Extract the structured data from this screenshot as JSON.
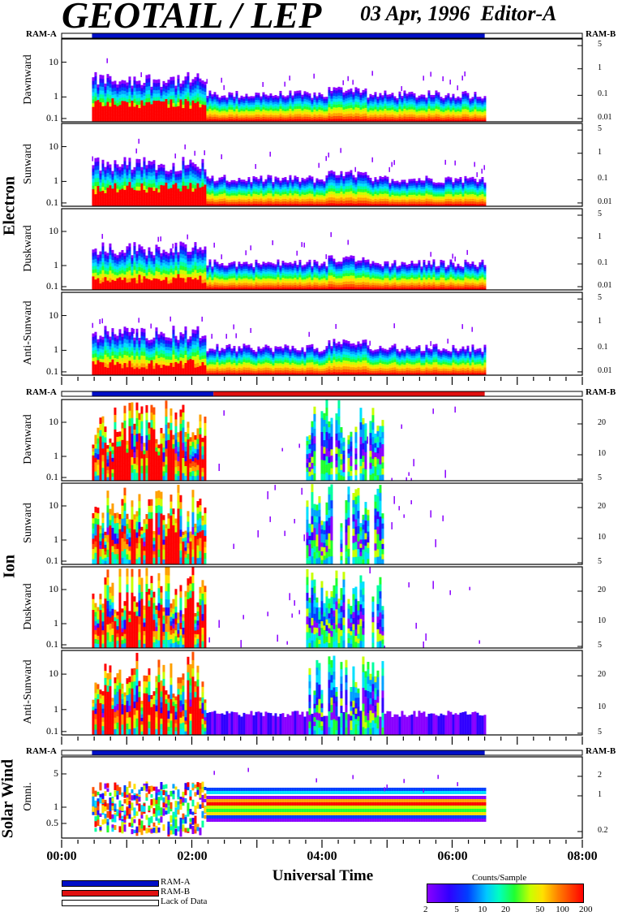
{
  "header": {
    "title": "GEOTAIL / LEP",
    "date": "03 Apr, 1996",
    "editor": "Editor-A"
  },
  "bars": {
    "ram_a": "RAM-A",
    "ram_b": "RAM-B"
  },
  "groups": {
    "electron": "Electron",
    "ion": "Ion",
    "solar_wind": "Solar Wind"
  },
  "panels": [
    {
      "id": "e1",
      "label": "Dawnward",
      "group": "electron"
    },
    {
      "id": "e2",
      "label": "Sunward",
      "group": "electron"
    },
    {
      "id": "e3",
      "label": "Duskward",
      "group": "electron"
    },
    {
      "id": "e4",
      "label": "Anti-Sunward",
      "group": "electron"
    },
    {
      "id": "i1",
      "label": "Dawnward",
      "group": "ion"
    },
    {
      "id": "i2",
      "label": "Sunward",
      "group": "ion"
    },
    {
      "id": "i3",
      "label": "Duskward",
      "group": "ion"
    },
    {
      "id": "i4",
      "label": "Anti-Sunward",
      "group": "ion"
    },
    {
      "id": "s1",
      "label": "Omni.",
      "group": "solar_wind"
    }
  ],
  "axes": {
    "left_ticks": [
      "10",
      "1",
      "0.1"
    ],
    "sw_left_ticks": [
      "5",
      "1",
      "0.5"
    ],
    "electron_right_ticks": [
      "5",
      "1",
      "0.1",
      "0.01"
    ],
    "ion_right_ticks": [
      "20",
      "10",
      "5"
    ],
    "sw_right_ticks": [
      "2",
      "1",
      "0.2"
    ],
    "x_ticks": [
      "00:00",
      "02:00",
      "04:00",
      "06:00",
      "08:00"
    ],
    "x_label": "Universal Time"
  },
  "chart_data": {
    "type": "heatmap",
    "title": "GEOTAIL / LEP",
    "xlabel": "Universal Time",
    "x_range": [
      "00:00",
      "08:00"
    ],
    "data_coverage": [
      "00:28",
      "06:30"
    ],
    "colorbar": {
      "title": "Counts/Sample",
      "ticks": [
        "2",
        "5",
        "10",
        "20",
        "50",
        "100",
        "200"
      ]
    },
    "mode_bars": [
      {
        "section": "electron",
        "mode": "RAM-A",
        "start": "00:28",
        "end": "06:30"
      },
      {
        "section": "ion",
        "mode": "RAM-A",
        "start": "00:28",
        "end": "02:20"
      },
      {
        "section": "ion",
        "mode": "RAM-B",
        "start": "02:20",
        "end": "06:30"
      },
      {
        "section": "solar_wind",
        "mode": "RAM-A",
        "start": "00:28",
        "end": "06:30"
      }
    ]
  },
  "legend": {
    "items": [
      {
        "label": "RAM-A",
        "color": "#0010c8"
      },
      {
        "label": "RAM-B",
        "color": "#e01010"
      },
      {
        "label": "Lack of Data",
        "color": "#ffffff"
      }
    ]
  }
}
